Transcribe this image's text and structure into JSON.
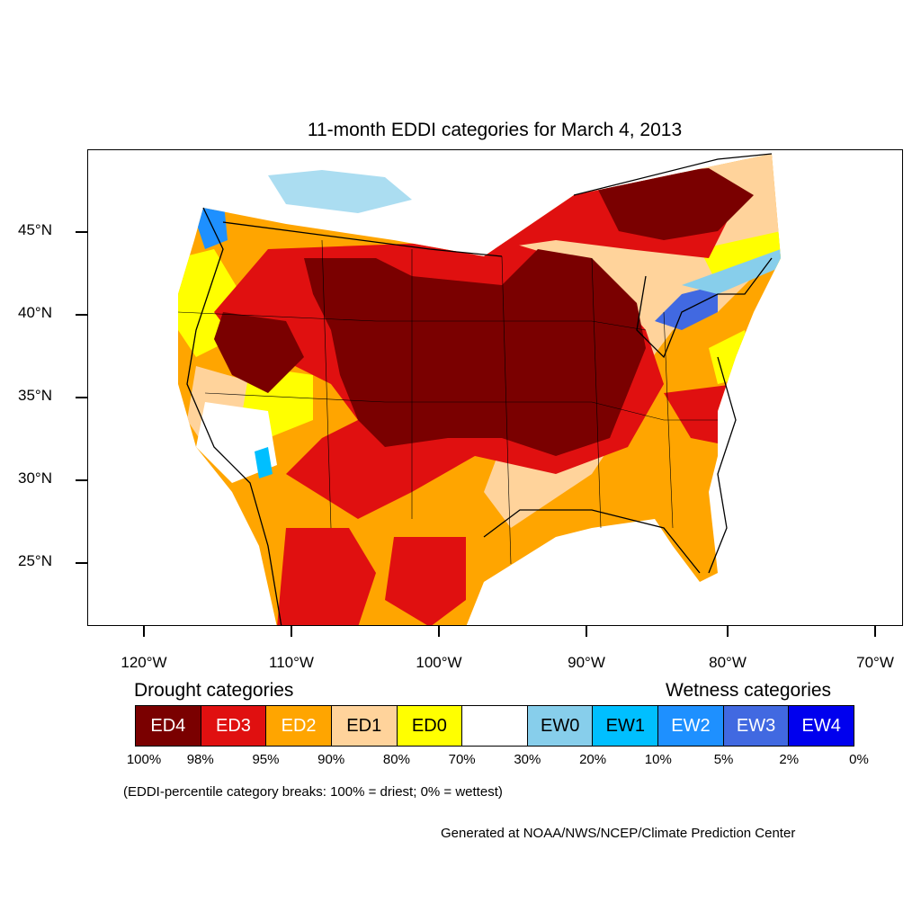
{
  "title": "11-month EDDI categories for March 4, 2013",
  "map": {
    "lat_labels": [
      "45°N",
      "40°N",
      "35°N",
      "30°N",
      "25°N"
    ],
    "lon_labels": [
      "120°W",
      "110°W",
      "100°W",
      "90°W",
      "80°W",
      "70°W"
    ]
  },
  "legend": {
    "drought_heading": "Drought categories",
    "wetness_heading": "Wetness categories",
    "categories": [
      {
        "label": "ED4",
        "color": "#7a0000",
        "text_color": "#ffffff"
      },
      {
        "label": "ED3",
        "color": "#e01010",
        "text_color": "#ffffff"
      },
      {
        "label": "ED2",
        "color": "#ffa500",
        "text_color": "#ffffff"
      },
      {
        "label": "ED1",
        "color": "#ffd39b",
        "text_color": "#000000"
      },
      {
        "label": "ED0",
        "color": "#ffff00",
        "text_color": "#000000"
      },
      {
        "label": "",
        "color": "#ffffff",
        "text_color": "#000000"
      },
      {
        "label": "EW0",
        "color": "#87ceeb",
        "text_color": "#000000"
      },
      {
        "label": "EW1",
        "color": "#00bfff",
        "text_color": "#000000"
      },
      {
        "label": "EW2",
        "color": "#1e90ff",
        "text_color": "#ffffff"
      },
      {
        "label": "EW3",
        "color": "#4169e1",
        "text_color": "#ffffff"
      },
      {
        "label": "EW4",
        "color": "#0000ee",
        "text_color": "#ffffff"
      }
    ],
    "breaks": [
      "100%",
      "98%",
      "95%",
      "90%",
      "80%",
      "70%",
      "30%",
      "20%",
      "10%",
      "5%",
      "2%",
      "0%"
    ]
  },
  "note": "(EDDI-percentile category breaks: 100% = driest; 0% = wettest)",
  "credit": "Generated at NOAA/NWS/NCEP/Climate Prediction Center"
}
